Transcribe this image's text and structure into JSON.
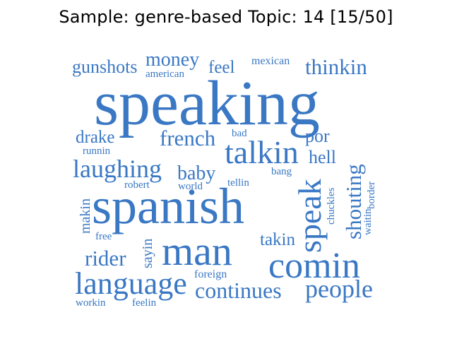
{
  "title": "Sample: genre-based Topic: 14 [15/50]",
  "word_color": "#3a78c4",
  "words": [
    {
      "text": "gunshots"
    },
    {
      "text": "money"
    },
    {
      "text": "american"
    },
    {
      "text": "feel"
    },
    {
      "text": "mexican"
    },
    {
      "text": "thinkin"
    },
    {
      "text": "speaking"
    },
    {
      "text": "drake"
    },
    {
      "text": "runnin"
    },
    {
      "text": "french"
    },
    {
      "text": "bad"
    },
    {
      "text": "por"
    },
    {
      "text": "talkin"
    },
    {
      "text": "hell"
    },
    {
      "text": "laughing"
    },
    {
      "text": "baby"
    },
    {
      "text": "bang"
    },
    {
      "text": "robert"
    },
    {
      "text": "world"
    },
    {
      "text": "tellin"
    },
    {
      "text": "shouting"
    },
    {
      "text": "border"
    },
    {
      "text": "chuckles"
    },
    {
      "text": "waitin"
    },
    {
      "text": "spanish"
    },
    {
      "text": "speak"
    },
    {
      "text": "makin"
    },
    {
      "text": "free"
    },
    {
      "text": "sayin"
    },
    {
      "text": "takin"
    },
    {
      "text": "man"
    },
    {
      "text": "rider"
    },
    {
      "text": "comin"
    },
    {
      "text": "foreign"
    },
    {
      "text": "language"
    },
    {
      "text": "continues"
    },
    {
      "text": "people"
    },
    {
      "text": "workin"
    },
    {
      "text": "feelin"
    }
  ]
}
